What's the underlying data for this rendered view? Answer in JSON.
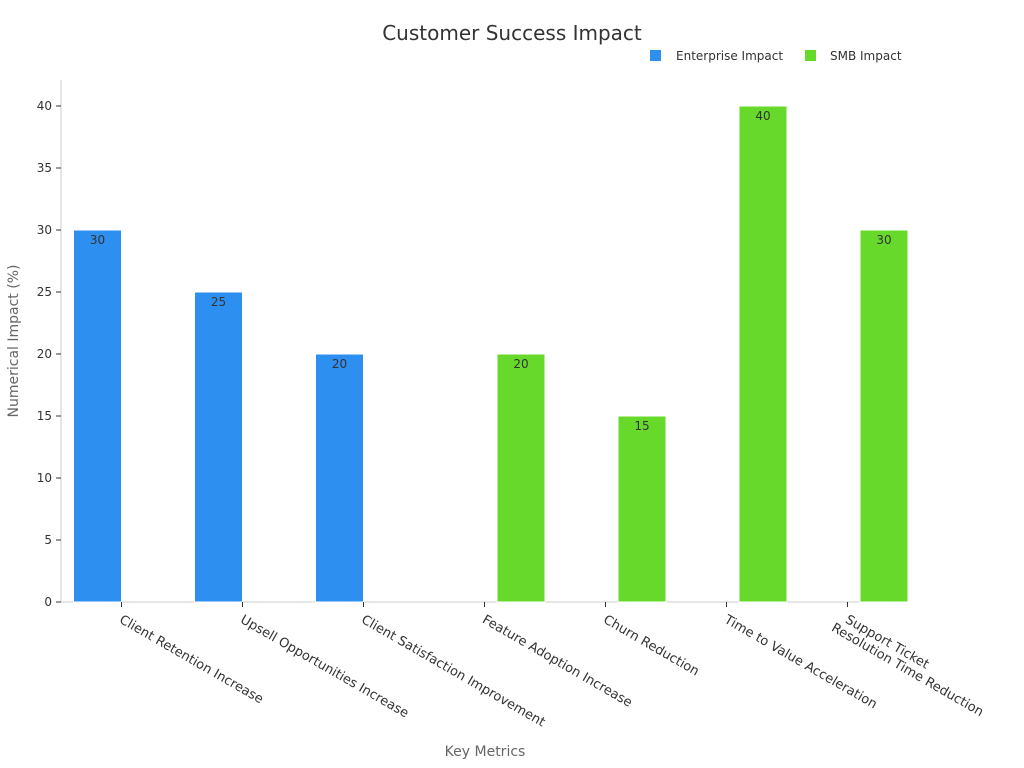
{
  "chart_data": {
    "type": "bar",
    "title": "Customer Success Impact",
    "xlabel": "Key Metrics",
    "ylabel": "Numerical Impact (%)",
    "ylim": [
      0,
      40
    ],
    "yticks": [
      0,
      5,
      10,
      15,
      20,
      25,
      30,
      35,
      40
    ],
    "categories": [
      "Client Retention Increase",
      "Upsell Opportunities Increase",
      "Client Satisfaction Improvement",
      "Feature Adoption Increase",
      "Churn Reduction",
      "Time to Value Acceleration",
      "Support Ticket Resolution Time Reduction"
    ],
    "series": [
      {
        "name": "Enterprise Impact",
        "color": "#2d8ff0",
        "values": [
          30,
          25,
          20,
          null,
          null,
          null,
          null
        ]
      },
      {
        "name": "SMB Impact",
        "color": "#66d92b",
        "values": [
          null,
          null,
          null,
          20,
          15,
          40,
          30
        ]
      }
    ],
    "legend_position": "top-right",
    "grid": false
  }
}
